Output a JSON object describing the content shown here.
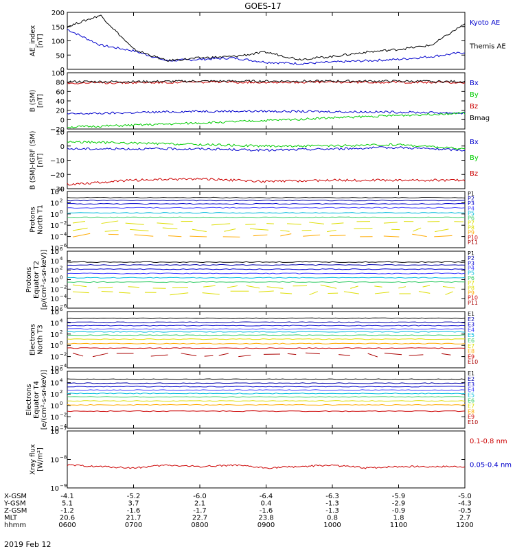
{
  "title": "GOES-17",
  "date_label": "2019 Feb 12",
  "colors": {
    "black": "#000000",
    "blue": "#0000cc",
    "green": "#00cc00",
    "red": "#cc0000",
    "navy": "#0000aa",
    "steel": "#4040ff",
    "cyan": "#00bbdd",
    "lightgreen": "#33cc66",
    "yellow": "#dddd00",
    "orange": "#ffaa00",
    "maroon": "#aa0000"
  },
  "footer": {
    "rows": [
      {
        "label": "X-GSM",
        "values": [
          "-4.1",
          "-5.2",
          "-6.0",
          "-6.4",
          "-6.3",
          "-5.9",
          "-5.0"
        ]
      },
      {
        "label": "Y-GSM",
        "values": [
          "5.1",
          "3.7",
          "2.1",
          "0.4",
          "-1.3",
          "-2.9",
          "-4.3"
        ]
      },
      {
        "label": "Z-GSM",
        "values": [
          "-1.2",
          "-1.6",
          "-1.7",
          "-1.6",
          "-1.3",
          "-0.9",
          "-0.5"
        ]
      },
      {
        "label": "MLT",
        "values": [
          "20.6",
          "21.7",
          "22.7",
          "23.8",
          "0.8",
          "1.8",
          "2.7"
        ]
      },
      {
        "label": "hhmm",
        "values": [
          "0600",
          "0700",
          "0800",
          "0900",
          "1000",
          "1100",
          "1200"
        ]
      }
    ]
  },
  "chart_data": [
    {
      "type": "line",
      "ylabel": [
        "AE_index",
        "[nT]"
      ],
      "ylim": [
        0,
        200
      ],
      "log": false,
      "yticks": [
        0,
        50,
        100,
        150,
        200
      ],
      "ytick_labels": [
        "0",
        "50",
        "100",
        "150",
        "200"
      ],
      "x": [
        "0600",
        "0630",
        "0700",
        "0730",
        "0800",
        "0830",
        "0900",
        "0930",
        "1000",
        "1030",
        "1100",
        "1130",
        "1200"
      ],
      "series": [
        {
          "name": "Kyoto AE",
          "color": "blue",
          "values": [
            140,
            85,
            65,
            30,
            35,
            40,
            25,
            20,
            25,
            30,
            35,
            45,
            60
          ]
        },
        {
          "name": "Themis AE",
          "color": "black",
          "values": [
            150,
            190,
            70,
            30,
            40,
            45,
            60,
            35,
            45,
            60,
            70,
            85,
            160
          ]
        }
      ],
      "legend": [
        {
          "text": "Kyoto AE",
          "color": "blue"
        },
        {
          "text": "Themis AE",
          "color": "black"
        }
      ]
    },
    {
      "type": "line",
      "ylabel": [
        "B (SM)",
        "[nT]"
      ],
      "ylim": [
        -20,
        100
      ],
      "log": false,
      "yticks": [
        -20,
        0,
        20,
        40,
        60,
        80,
        100
      ],
      "ytick_labels": [
        "−20",
        "0",
        "20",
        "40",
        "60",
        "80",
        "100"
      ],
      "x": [
        "0600",
        "0700",
        "0800",
        "0900",
        "1000",
        "1100",
        "1200"
      ],
      "series": [
        {
          "name": "Bx",
          "color": "blue",
          "values": [
            12,
            15,
            18,
            18,
            17,
            16,
            14
          ]
        },
        {
          "name": "By",
          "color": "green",
          "values": [
            -16,
            -12,
            -7,
            -2,
            4,
            9,
            14
          ]
        },
        {
          "name": "Bz",
          "color": "red",
          "values": [
            78,
            79,
            80,
            80,
            80,
            80,
            79
          ]
        },
        {
          "name": "Bmag",
          "color": "black",
          "values": [
            81,
            81,
            82,
            82,
            82,
            82,
            81
          ]
        }
      ],
      "legend": [
        {
          "text": "Bx",
          "color": "blue"
        },
        {
          "text": "By",
          "color": "green"
        },
        {
          "text": "Bz",
          "color": "red"
        },
        {
          "text": "Bmag",
          "color": "black"
        }
      ]
    },
    {
      "type": "line",
      "ylabel": [
        "B (SM)-IGRF (SM)",
        "[nT]"
      ],
      "ylim": [
        -30,
        10
      ],
      "log": false,
      "yticks": [
        -30,
        -20,
        -10,
        0,
        10
      ],
      "ytick_labels": [
        "−30",
        "−20",
        "−10",
        "0",
        "10"
      ],
      "x": [
        "0600",
        "0700",
        "0800",
        "0900",
        "1000",
        "1100",
        "1200"
      ],
      "series": [
        {
          "name": "Bx",
          "color": "blue",
          "values": [
            -2,
            -2,
            -2,
            -3,
            -2,
            -1,
            -3
          ]
        },
        {
          "name": "By",
          "color": "green",
          "values": [
            3,
            2,
            1,
            0,
            0,
            1,
            -2
          ]
        },
        {
          "name": "Bz",
          "color": "red",
          "values": [
            -27,
            -24,
            -23,
            -25,
            -24,
            -24,
            -24
          ]
        }
      ],
      "legend": [
        {
          "text": "Bx",
          "color": "blue"
        },
        {
          "text": "By",
          "color": "green"
        },
        {
          "text": "Bz",
          "color": "red"
        }
      ]
    },
    {
      "type": "line",
      "ylabel": [
        "Protons",
        "North T1"
      ],
      "log": true,
      "ylim_exp": [
        -6,
        4
      ],
      "ytick_labels": [
        "10",
        "10",
        "10",
        "10",
        "10",
        "10"
      ],
      "ytick_exps": [
        "4",
        "2",
        "0",
        "−2",
        "−4",
        "−6"
      ],
      "channels": [
        {
          "name": "P1",
          "color": "black",
          "log_value": 2.9
        },
        {
          "name": "P2",
          "color": "navy",
          "log_value": 2.4
        },
        {
          "name": "P3",
          "color": "blue",
          "log_value": 1.8
        },
        {
          "name": "P4",
          "color": "steel",
          "log_value": 1.1
        },
        {
          "name": "P5",
          "color": "cyan",
          "log_value": 0.2
        },
        {
          "name": "P6",
          "color": "lightgreen",
          "log_value": -0.6
        },
        {
          "name": "P7",
          "color": "yellow",
          "log_value": -1.6
        },
        {
          "name": "P8",
          "color": "yellow",
          "log_value": -2.8
        },
        {
          "name": "P9",
          "color": "orange",
          "log_value": -3.8
        },
        {
          "name": "P10",
          "color": "red",
          "log_value": null
        },
        {
          "name": "P11",
          "color": "maroon",
          "log_value": null
        }
      ]
    },
    {
      "type": "line",
      "ylabel": [
        "Protons",
        "Equator T2",
        "[p/(cm²-s-sr-keV)]"
      ],
      "log": true,
      "ylim_exp": [
        -6,
        6
      ],
      "ytick_labels": [
        "10",
        "10",
        "10",
        "10",
        "10",
        "10",
        "10"
      ],
      "ytick_exps": [
        "6",
        "4",
        "2",
        "0",
        "−2",
        "−4",
        "−6"
      ],
      "channels": [
        {
          "name": "P1",
          "color": "black",
          "log_value": 3.7
        },
        {
          "name": "P2",
          "color": "navy",
          "log_value": 3.1
        },
        {
          "name": "P3",
          "color": "blue",
          "log_value": 2.2
        },
        {
          "name": "P4",
          "color": "steel",
          "log_value": 1.3
        },
        {
          "name": "P5",
          "color": "cyan",
          "log_value": 0.4
        },
        {
          "name": "P6",
          "color": "lightgreen",
          "log_value": -0.5
        },
        {
          "name": "P7",
          "color": "yellow",
          "log_value": -1.5
        },
        {
          "name": "P8",
          "color": "yellow",
          "log_value": -2.8
        },
        {
          "name": "P9",
          "color": "orange",
          "log_value": null
        },
        {
          "name": "P10",
          "color": "red",
          "log_value": null
        },
        {
          "name": "P11",
          "color": "maroon",
          "log_value": null
        }
      ]
    },
    {
      "type": "line",
      "ylabel": [
        "Electrons",
        "North T3"
      ],
      "log": true,
      "ylim_exp": [
        -4,
        6
      ],
      "ytick_labels": [
        "10",
        "10",
        "10",
        "10",
        "10",
        "10"
      ],
      "ytick_exps": [
        "6",
        "4",
        "2",
        "0",
        "−2",
        "−4"
      ],
      "channels": [
        {
          "name": "E1",
          "color": "black",
          "log_value": 4.8
        },
        {
          "name": "E2",
          "color": "navy",
          "log_value": 4.1
        },
        {
          "name": "E3",
          "color": "blue",
          "log_value": 3.5
        },
        {
          "name": "E4",
          "color": "steel",
          "log_value": 2.9
        },
        {
          "name": "E5",
          "color": "cyan",
          "log_value": 2.4
        },
        {
          "name": "E6",
          "color": "lightgreen",
          "log_value": 1.8
        },
        {
          "name": "E7",
          "color": "yellow",
          "log_value": 1.1
        },
        {
          "name": "E8",
          "color": "orange",
          "log_value": 0.3
        },
        {
          "name": "E9",
          "color": "red",
          "log_value": -0.5
        },
        {
          "name": "E10",
          "color": "maroon",
          "log_value": -1.7
        }
      ]
    },
    {
      "type": "line",
      "ylabel": [
        "Electrons",
        "Equator T4",
        "[e/(cm²-s-sr-keV)]"
      ],
      "log": true,
      "ylim_exp": [
        -4,
        6
      ],
      "ytick_labels": [
        "10",
        "10",
        "10",
        "10",
        "10",
        "10"
      ],
      "ytick_exps": [
        "6",
        "4",
        "2",
        "0",
        "−2",
        "−4"
      ],
      "channels": [
        {
          "name": "E1",
          "color": "black",
          "log_value": 4.6
        },
        {
          "name": "E2",
          "color": "navy",
          "log_value": 3.9
        },
        {
          "name": "E3",
          "color": "blue",
          "log_value": 3.3
        },
        {
          "name": "E4",
          "color": "steel",
          "log_value": 2.7
        },
        {
          "name": "E5",
          "color": "cyan",
          "log_value": 2.1
        },
        {
          "name": "E6",
          "color": "lightgreen",
          "log_value": 1.5
        },
        {
          "name": "E7",
          "color": "yellow",
          "log_value": 0.8
        },
        {
          "name": "E8",
          "color": "orange",
          "log_value": 0.1
        },
        {
          "name": "E9",
          "color": "red",
          "log_value": -1.0
        },
        {
          "name": "E10",
          "color": "maroon",
          "log_value": null
        }
      ]
    },
    {
      "type": "line",
      "ylabel": [
        "Xray flux",
        "[W/m²]"
      ],
      "log": true,
      "ylim_exp": [
        -9,
        -7
      ],
      "ytick_labels": [
        "10",
        "10",
        "10"
      ],
      "ytick_exps": [
        "−7",
        "−8",
        "−9"
      ],
      "series": [
        {
          "name": "0.1-0.8 nm",
          "color": "red",
          "log_values": [
            -8.2,
            -8.25,
            -8.3,
            -8.2,
            -8.25,
            -8.2,
            -8.3,
            -8.25,
            -8.2,
            -8.3,
            -8.25,
            -8.25,
            -8.25
          ]
        },
        {
          "name": "0.05-0.4 nm",
          "color": "blue",
          "log_values": [
            null,
            null,
            null,
            null,
            null,
            null,
            null,
            null,
            null,
            null,
            null,
            null,
            null
          ]
        }
      ],
      "legend": [
        {
          "text": "0.1-0.8 nm",
          "color": "red"
        },
        {
          "text": "0.05-0.4 nm",
          "color": "blue"
        }
      ]
    }
  ]
}
